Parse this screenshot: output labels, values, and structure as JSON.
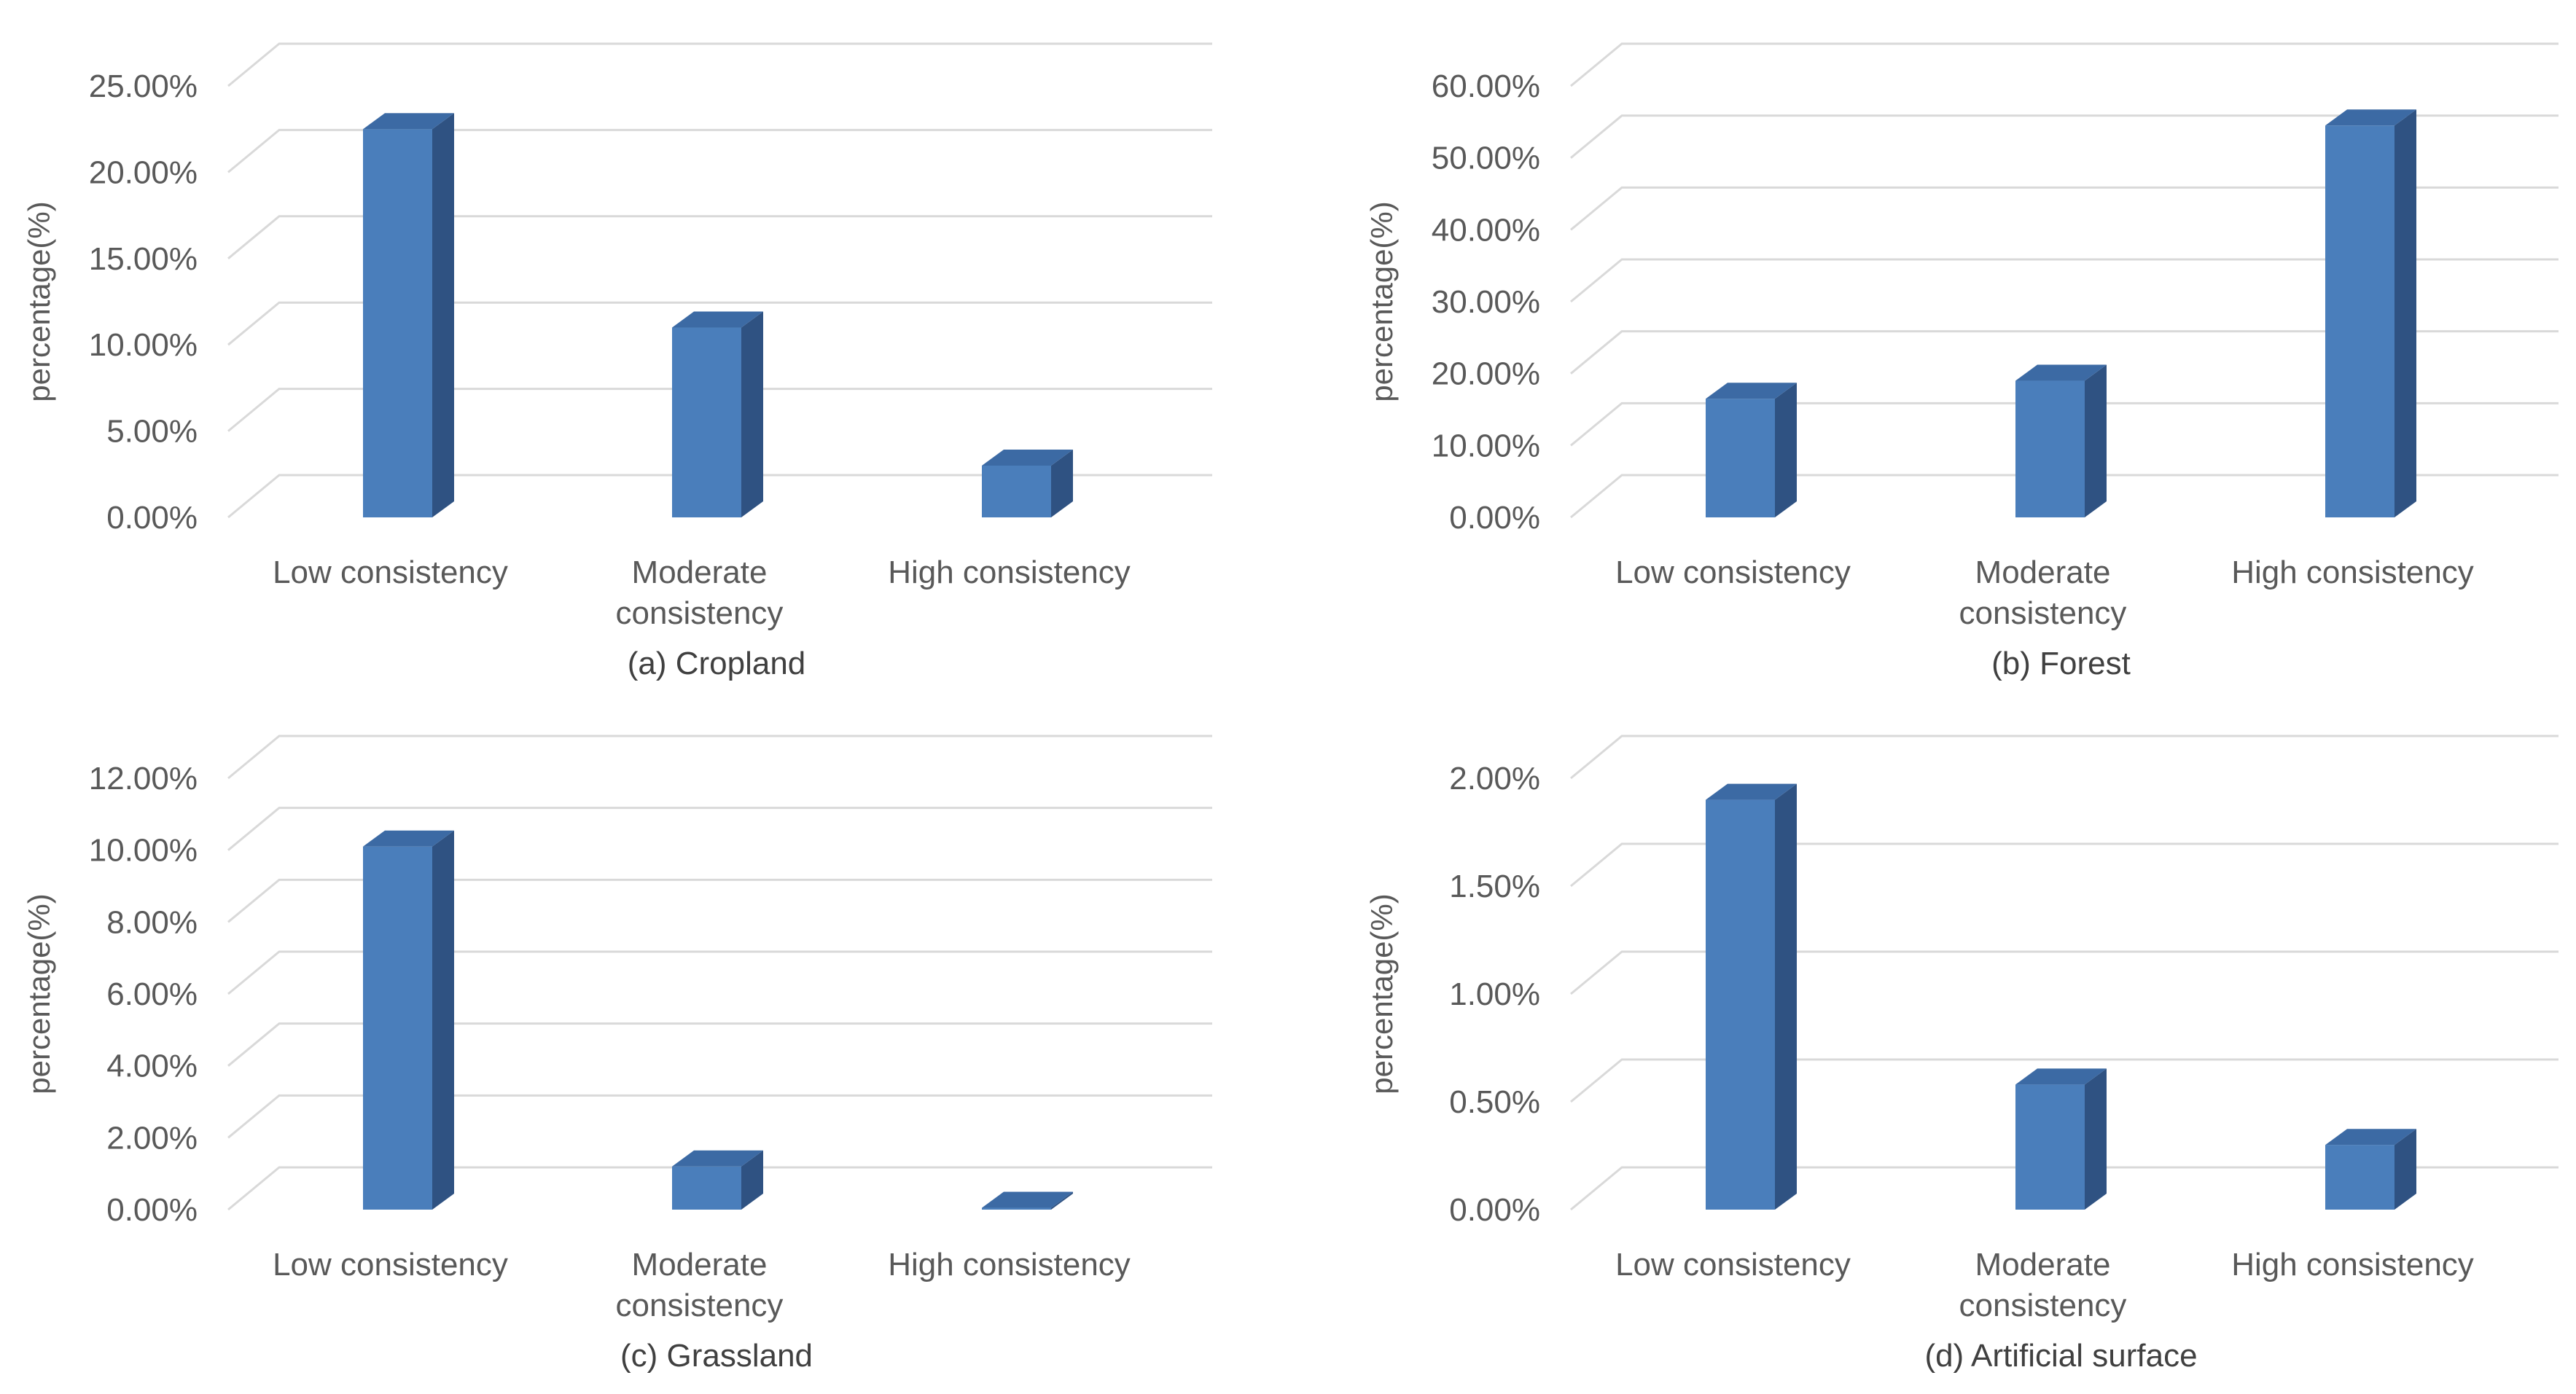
{
  "chart_data": [
    {
      "type": "bar",
      "title": "(a) Cropland",
      "ylabel": "percentage(%)",
      "categories": [
        "Low consistency",
        "Moderate consistency",
        "High consistency"
      ],
      "values": [
        22.5,
        11.0,
        3.0
      ],
      "yticks": [
        "0.00%",
        "5.00%",
        "10.00%",
        "15.00%",
        "20.00%",
        "25.00%"
      ],
      "ylim": [
        0,
        25
      ],
      "grid": true,
      "color": "#4a7ebb"
    },
    {
      "type": "bar",
      "title": "(b) Forest",
      "ylabel": "percentage(%)",
      "categories": [
        "Low consistency",
        "Moderate consistency",
        "High consistency"
      ],
      "values": [
        16.5,
        19.0,
        54.5
      ],
      "yticks": [
        "0.00%",
        "10.00%",
        "20.00%",
        "30.00%",
        "40.00%",
        "50.00%",
        "60.00%"
      ],
      "ylim": [
        0,
        60
      ],
      "grid": true,
      "color": "#4a7ebb"
    },
    {
      "type": "bar",
      "title": "(c) Grassland",
      "ylabel": "percentage(%)",
      "categories": [
        "Low consistency",
        "Moderate consistency",
        "High consistency"
      ],
      "values": [
        10.1,
        1.2,
        0.05
      ],
      "yticks": [
        "0.00%",
        "2.00%",
        "4.00%",
        "6.00%",
        "8.00%",
        "10.00%",
        "12.00%"
      ],
      "ylim": [
        0,
        12
      ],
      "grid": true,
      "color": "#4a7ebb"
    },
    {
      "type": "bar",
      "title": "(d)  Artificial surface",
      "ylabel": "percentage(%)",
      "categories": [
        "Low consistency",
        "Moderate consistency",
        "High consistency"
      ],
      "values": [
        1.9,
        0.58,
        0.3
      ],
      "yticks": [
        "0.00%",
        "0.50%",
        "1.00%",
        "1.50%",
        "2.00%"
      ],
      "ylim": [
        0,
        2
      ],
      "grid": true,
      "color": "#4a7ebb"
    }
  ]
}
